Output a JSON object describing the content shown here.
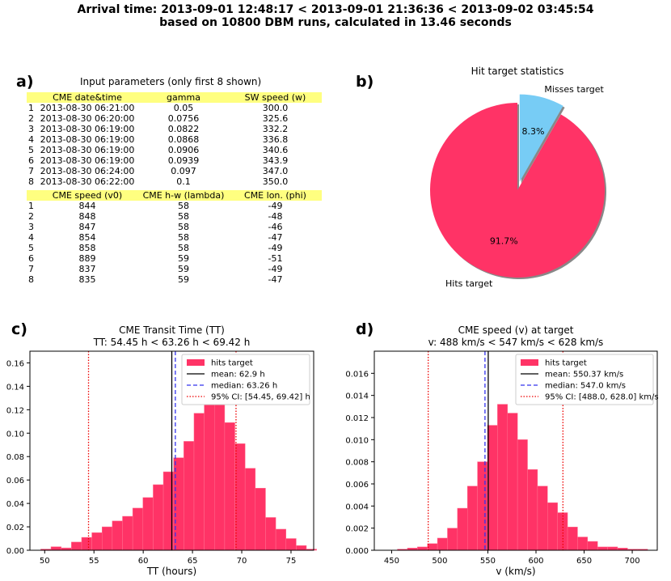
{
  "suptitle": {
    "line1": "Arrival time: 2013-09-01 12:48:17 < 2013-09-01 21:36:36 < 2013-09-02 03:45:54",
    "line2": "based on 10800 DBM runs, calculated in 13.46 seconds"
  },
  "panels": {
    "a": "a)",
    "b": "b)",
    "c": "c)",
    "d": "d)"
  },
  "table1": {
    "title": "Input parameters (only first 8 shown)",
    "headers": [
      "CME date&time",
      "gamma",
      "SW speed (w)"
    ],
    "rows": [
      {
        "i": "1",
        "date": "2013-08-30 06:21:00",
        "gamma": "0.05",
        "sw": "300.0"
      },
      {
        "i": "2",
        "date": "2013-08-30 06:20:00",
        "gamma": "0.0756",
        "sw": "325.6"
      },
      {
        "i": "3",
        "date": "2013-08-30 06:19:00",
        "gamma": "0.0822",
        "sw": "332.2"
      },
      {
        "i": "4",
        "date": "2013-08-30 06:19:00",
        "gamma": "0.0868",
        "sw": "336.8"
      },
      {
        "i": "5",
        "date": "2013-08-30 06:19:00",
        "gamma": "0.0906",
        "sw": "340.6"
      },
      {
        "i": "6",
        "date": "2013-08-30 06:19:00",
        "gamma": "0.0939",
        "sw": "343.9"
      },
      {
        "i": "7",
        "date": "2013-08-30 06:24:00",
        "gamma": "0.097",
        "sw": "347.0"
      },
      {
        "i": "8",
        "date": "2013-08-30 06:22:00",
        "gamma": "0.1",
        "sw": "350.0"
      }
    ]
  },
  "table2": {
    "headers": [
      "CME speed (v0)",
      "CME h-w (lambda)",
      "CME lon. (phi)"
    ],
    "rows": [
      {
        "i": "1",
        "v0": "844",
        "hw": "58",
        "lon": "-49"
      },
      {
        "i": "2",
        "v0": "848",
        "hw": "58",
        "lon": "-48"
      },
      {
        "i": "3",
        "v0": "847",
        "hw": "58",
        "lon": "-46"
      },
      {
        "i": "4",
        "v0": "854",
        "hw": "58",
        "lon": "-47"
      },
      {
        "i": "5",
        "v0": "858",
        "hw": "58",
        "lon": "-49"
      },
      {
        "i": "6",
        "v0": "889",
        "hw": "59",
        "lon": "-51"
      },
      {
        "i": "7",
        "v0": "837",
        "hw": "59",
        "lon": "-49"
      },
      {
        "i": "8",
        "v0": "835",
        "hw": "59",
        "lon": "-47"
      }
    ]
  },
  "colors": {
    "hits": "#ff3366",
    "misses": "#77ccf5",
    "mean": "#000000",
    "median": "#3333ee",
    "ci": "#ee0000"
  },
  "chart_data": [
    {
      "type": "pie",
      "title": "Hit target statistics",
      "labels": [
        "Hits target",
        "Misses target"
      ],
      "values": [
        91.7,
        8.3
      ],
      "pct_labels": [
        "91.7%",
        "8.3%"
      ],
      "explode": [
        0,
        0.1
      ],
      "startangle": 90
    },
    {
      "type": "bar",
      "title": "CME Transit Time (TT)",
      "subtitle": "TT: 54.45 h < 63.26 h < 69.42 h",
      "xlabel": "TT (hours)",
      "xlim": [
        48.5,
        77.3
      ],
      "ylim": [
        0,
        0.17
      ],
      "xticks": [
        "50",
        "55",
        "60",
        "65",
        "70",
        "75"
      ],
      "yticks": [
        "0.00",
        "0.02",
        "0.04",
        "0.06",
        "0.08",
        "0.10",
        "0.12",
        "0.14",
        "0.16"
      ],
      "bin_start": 49.6,
      "bin_width": 1.037,
      "values": [
        0.001,
        0.003,
        0.002,
        0.007,
        0.011,
        0.015,
        0.02,
        0.025,
        0.029,
        0.036,
        0.045,
        0.056,
        0.067,
        0.079,
        0.093,
        0.117,
        0.133,
        0.127,
        0.109,
        0.091,
        0.07,
        0.053,
        0.028,
        0.018,
        0.01,
        0.004,
        0.001
      ],
      "mean": 62.9,
      "median": 63.26,
      "ci": [
        54.45,
        69.42
      ],
      "legend": [
        "hits target",
        "mean: 62.9 h",
        "median: 63.26 h",
        "95% CI: [54.45, 69.42] h"
      ]
    },
    {
      "type": "bar",
      "title": "CME speed (v) at target",
      "subtitle": "v: 488 km/s < 547 km/s < 628 km/s",
      "xlabel": "v (km/s)",
      "xlim": [
        432,
        726
      ],
      "ylim": [
        0,
        0.018
      ],
      "xticks": [
        "450",
        "500",
        "550",
        "600",
        "650",
        "700"
      ],
      "yticks": [
        "0.000",
        "0.002",
        "0.004",
        "0.006",
        "0.008",
        "0.010",
        "0.012",
        "0.014",
        "0.016"
      ],
      "bin_start": 456,
      "bin_width": 10.4,
      "values": [
        0.0001,
        0.0002,
        0.0003,
        0.0006,
        0.0011,
        0.002,
        0.0038,
        0.0058,
        0.008,
        0.0113,
        0.0132,
        0.0124,
        0.01,
        0.0073,
        0.0058,
        0.0043,
        0.0034,
        0.0021,
        0.0012,
        0.0008,
        0.0003,
        0.0003,
        0.0002,
        0.0001,
        0.0001
      ],
      "mean": 550.37,
      "median": 547.0,
      "ci": [
        488.0,
        628.0
      ],
      "legend": [
        "hits target",
        "mean: 550.37 km/s",
        "median: 547.0 km/s",
        "95% CI: [488.0, 628.0] km/s"
      ]
    }
  ]
}
